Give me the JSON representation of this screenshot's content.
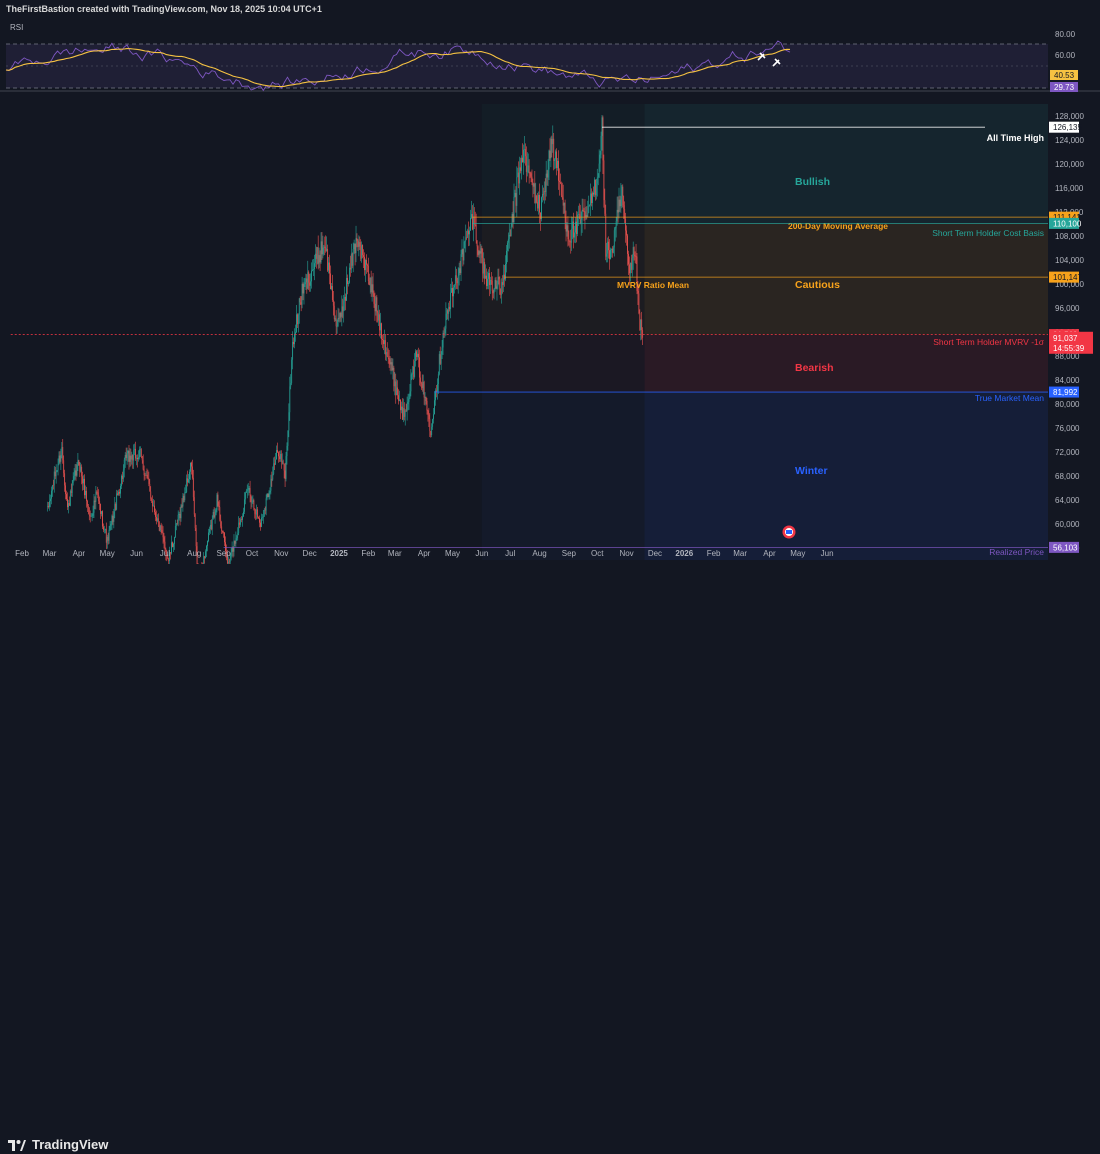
{
  "header": {
    "credit": "TheFirstBastion created with TradingView.com, Nov 18, 2025 10:04 UTC+1"
  },
  "footer": {
    "brand": "TradingView"
  },
  "rsi_panel": {
    "label": "RSI",
    "levels": [
      "80.00",
      "60.00"
    ],
    "badges": [
      {
        "text": "40.53",
        "color": "#f5c242",
        "value": 40.53
      },
      {
        "text": "29.73",
        "color": "#7e57c2",
        "value": 29.73
      }
    ]
  },
  "chart_data": {
    "type": "candlestick",
    "title": "",
    "x_labels": [
      "Feb",
      "Mar",
      "Apr",
      "May",
      "Jun",
      "Jul",
      "Aug",
      "Sep",
      "Oct",
      "Nov",
      "Dec",
      "2025",
      "Feb",
      "Mar",
      "Apr",
      "May",
      "Jun",
      "Jul",
      "Aug",
      "Sep",
      "Oct",
      "Nov",
      "Dec",
      "2026",
      "Feb",
      "Mar",
      "Apr",
      "May",
      "Jun"
    ],
    "y_ticks": [
      "128,000",
      "124,000",
      "120,000",
      "116,000",
      "112,000",
      "108,000",
      "104,000",
      "100,000",
      "96,000",
      "92,000",
      "88,000",
      "84,000",
      "80,000",
      "76,000",
      "72,000",
      "68,000",
      "64,000",
      "60,000",
      "56,000"
    ],
    "ylim": [
      54000,
      130000
    ],
    "anchors": [
      [
        "2024-02-28",
        62000
      ],
      [
        "2024-03-05",
        67000
      ],
      [
        "2024-03-14",
        72500
      ],
      [
        "2024-03-20",
        62500
      ],
      [
        "2024-04-01",
        70500
      ],
      [
        "2024-04-13",
        61000
      ],
      [
        "2024-04-20",
        65000
      ],
      [
        "2024-05-01",
        57000
      ],
      [
        "2024-05-21",
        71000
      ],
      [
        "2024-06-05",
        71500
      ],
      [
        "2024-06-24",
        60000
      ],
      [
        "2024-07-05",
        54000
      ],
      [
        "2024-07-29",
        70000
      ],
      [
        "2024-08-05",
        50000
      ],
      [
        "2024-08-25",
        64000
      ],
      [
        "2024-09-06",
        53000
      ],
      [
        "2024-09-27",
        66000
      ],
      [
        "2024-10-10",
        60000
      ],
      [
        "2024-10-29",
        72500
      ],
      [
        "2024-11-05",
        68000
      ],
      [
        "2024-11-13",
        90000
      ],
      [
        "2024-11-22",
        98000
      ],
      [
        "2024-12-05",
        103000
      ],
      [
        "2024-12-17",
        107000
      ],
      [
        "2024-12-30",
        92000
      ],
      [
        "2025-01-20",
        108000
      ],
      [
        "2025-02-03",
        100000
      ],
      [
        "2025-02-25",
        86000
      ],
      [
        "2025-03-10",
        78000
      ],
      [
        "2025-03-24",
        88000
      ],
      [
        "2025-04-08",
        76000
      ],
      [
        "2025-04-22",
        93000
      ],
      [
        "2025-05-10",
        104000
      ],
      [
        "2025-05-22",
        111000
      ],
      [
        "2025-06-05",
        101000
      ],
      [
        "2025-06-22",
        99000
      ],
      [
        "2025-07-10",
        118000
      ],
      [
        "2025-07-14",
        122000
      ],
      [
        "2025-08-02",
        112000
      ],
      [
        "2025-08-14",
        124000
      ],
      [
        "2025-09-01",
        108000
      ],
      [
        "2025-09-22",
        112000
      ],
      [
        "2025-10-01",
        118000
      ],
      [
        "2025-10-06",
        126135
      ],
      [
        "2025-10-10",
        105000
      ],
      [
        "2025-10-17",
        106000
      ],
      [
        "2025-10-27",
        115000
      ],
      [
        "2025-11-04",
        101000
      ],
      [
        "2025-11-10",
        106000
      ],
      [
        "2025-11-14",
        94000
      ],
      [
        "2025-11-18",
        91037
      ]
    ],
    "levels": [
      {
        "name": "All Time High",
        "value": 126135,
        "badge": "126,135",
        "color": "#ffffff",
        "start": "2025-10-06"
      },
      {
        "name": "200-Day Moving Average",
        "value": 111141,
        "badge": "111,141",
        "color": "#f7a21b",
        "start": "2025-05-22"
      },
      {
        "name": "Short Term Holder Cost Basis",
        "value": 110100,
        "badge": "110,100",
        "color": "#26a69a",
        "start": "2025-05-22"
      },
      {
        "name": "MVRV Ratio Mean",
        "value": 101147,
        "badge": "101,147",
        "color": "#f7a21b",
        "start": "2025-06-25"
      },
      {
        "name": "Short Term Holder MVRV -1σ",
        "value": 91569,
        "badge": "91,569",
        "color": "#f23645",
        "start": "2024-01-20"
      },
      {
        "name": "True Market Mean",
        "value": 81992,
        "badge": "81,992",
        "color": "#2962ff",
        "start": "2025-04-12"
      },
      {
        "name": "Realized Price",
        "value": 56103,
        "badge": "56,103",
        "color": "#7e57c2",
        "start": "2024-09-01"
      }
    ],
    "price_badge": {
      "value": 91037,
      "price": "91,037",
      "countdown": "14:55:39",
      "color": "#f23645"
    },
    "zones": [
      {
        "name": "Bullish",
        "from": 110100,
        "to": 130000,
        "color": "#26a69a"
      },
      {
        "name": "Cautious",
        "from": 91569,
        "to": 110100,
        "color": "#f7a21b"
      },
      {
        "name": "Bearish",
        "from": 81992,
        "to": 91569,
        "color": "#f23645"
      },
      {
        "name": "Winter",
        "from": 54000,
        "to": 81992,
        "color": "#2962ff"
      }
    ]
  }
}
